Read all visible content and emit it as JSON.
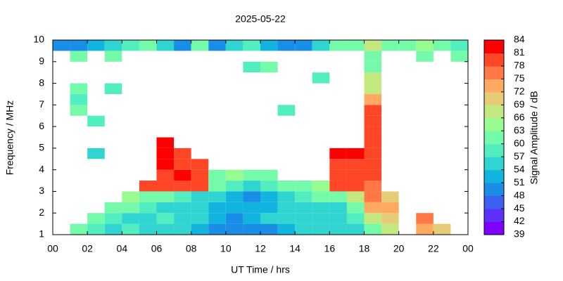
{
  "chart_data": {
    "type": "heatmap",
    "title": "2025-05-22",
    "x_label": "UT Time / hrs",
    "y_label": "Frequency / MHz",
    "colorbar_label": "Signal Amplitude / dB",
    "xlim": [
      0,
      24
    ],
    "xticks": [
      {
        "value": 0,
        "label": "00"
      },
      {
        "value": 2,
        "label": "02"
      },
      {
        "value": 4,
        "label": "04"
      },
      {
        "value": 6,
        "label": "06"
      },
      {
        "value": 8,
        "label": "08"
      },
      10,
      12,
      14,
      16,
      18,
      20,
      22,
      {
        "value": 24,
        "label": "00"
      }
    ],
    "ylim": [
      1,
      10
    ],
    "yticks": [
      1,
      2,
      3,
      4,
      5,
      6,
      7,
      8,
      9,
      10
    ],
    "clim": [
      39,
      84
    ],
    "cticks": [
      39,
      42,
      45,
      48,
      51,
      54,
      57,
      60,
      63,
      66,
      69,
      72,
      75,
      78,
      81,
      84
    ],
    "colors": [
      "#8000ff",
      "#5e30fa",
      "#3c60f2",
      "#1a8ee6",
      "#10b4de",
      "#30d4d0",
      "#52eec0",
      "#74faa8",
      "#98fc90",
      "#c4e880",
      "#e6cc78",
      "#ffaa60",
      "#ff7846",
      "#ff4626",
      "#ff0000"
    ],
    "x": [
      0,
      1,
      2,
      3,
      4,
      5,
      6,
      7,
      8,
      9,
      10,
      11,
      12,
      13,
      14,
      15,
      16,
      17,
      18,
      19,
      20,
      21,
      22,
      23
    ],
    "y": [
      1,
      1.5,
      2,
      2.5,
      3,
      3.5,
      4,
      4.5,
      5,
      5.5,
      6,
      6.5,
      7,
      7.5,
      8,
      8.5,
      9,
      9.5
    ],
    "values": [
      [
        null,
        60,
        58,
        55,
        57,
        55,
        54,
        55,
        52,
        50,
        50,
        48,
        50,
        52,
        54,
        55,
        55,
        56,
        60,
        66,
        null,
        72,
        70,
        null
      ],
      [
        null,
        null,
        60,
        58,
        56,
        55,
        57,
        55,
        54,
        52,
        50,
        52,
        55,
        54,
        55,
        56,
        55,
        58,
        66,
        70,
        null,
        75,
        null,
        null
      ],
      [
        null,
        null,
        null,
        62,
        60,
        58,
        56,
        55,
        54,
        53,
        52,
        53,
        52,
        54,
        55,
        56,
        56,
        60,
        72,
        72,
        null,
        null,
        null,
        null
      ],
      [
        null,
        null,
        null,
        null,
        63,
        62,
        60,
        58,
        56,
        54,
        52,
        50,
        52,
        55,
        57,
        60,
        62,
        66,
        75,
        70,
        null,
        null,
        null,
        null
      ],
      [
        null,
        null,
        null,
        null,
        null,
        78,
        80,
        80,
        78,
        60,
        57,
        55,
        57,
        60,
        62,
        65,
        78,
        80,
        75,
        null,
        null,
        null,
        null,
        null
      ],
      [
        null,
        null,
        null,
        null,
        null,
        null,
        80,
        82,
        80,
        62,
        63,
        62,
        62,
        null,
        null,
        null,
        80,
        80,
        78,
        null,
        null,
        null,
        null,
        null
      ],
      [
        null,
        null,
        null,
        null,
        null,
        null,
        82,
        80,
        80,
        null,
        null,
        null,
        null,
        null,
        null,
        null,
        80,
        80,
        80,
        null,
        null,
        null,
        null,
        null
      ],
      [
        null,
        null,
        54,
        null,
        null,
        null,
        82,
        80,
        null,
        null,
        null,
        null,
        null,
        null,
        null,
        null,
        82,
        82,
        80,
        null,
        null,
        null,
        null,
        null
      ],
      [
        null,
        null,
        null,
        null,
        null,
        null,
        84,
        null,
        null,
        null,
        null,
        null,
        null,
        null,
        null,
        null,
        null,
        null,
        80,
        null,
        null,
        null,
        null,
        null
      ],
      [
        null,
        null,
        null,
        null,
        null,
        null,
        null,
        null,
        null,
        null,
        null,
        null,
        null,
        null,
        null,
        null,
        null,
        null,
        80,
        null,
        null,
        null,
        null,
        null
      ],
      [
        null,
        null,
        58,
        null,
        null,
        null,
        null,
        null,
        null,
        null,
        null,
        null,
        null,
        null,
        null,
        null,
        null,
        null,
        80,
        null,
        null,
        null,
        null,
        null
      ],
      [
        null,
        60,
        null,
        null,
        null,
        null,
        null,
        null,
        null,
        null,
        null,
        null,
        null,
        57,
        null,
        null,
        null,
        null,
        78,
        null,
        null,
        null,
        null,
        null
      ],
      [
        null,
        58,
        null,
        null,
        null,
        null,
        null,
        null,
        null,
        null,
        null,
        null,
        null,
        null,
        null,
        null,
        null,
        null,
        72,
        null,
        null,
        null,
        null,
        null
      ],
      [
        null,
        60,
        null,
        57,
        null,
        null,
        null,
        null,
        null,
        null,
        null,
        null,
        null,
        null,
        null,
        null,
        null,
        null,
        66,
        null,
        null,
        null,
        null,
        null
      ],
      [
        null,
        null,
        null,
        null,
        null,
        null,
        null,
        null,
        null,
        null,
        null,
        null,
        null,
        null,
        null,
        57,
        null,
        null,
        66,
        null,
        null,
        null,
        null,
        null
      ],
      [
        null,
        null,
        null,
        null,
        null,
        null,
        null,
        null,
        null,
        null,
        null,
        57,
        60,
        null,
        null,
        null,
        null,
        null,
        60,
        null,
        null,
        null,
        null,
        null
      ],
      [
        null,
        62,
        null,
        60,
        null,
        null,
        null,
        null,
        null,
        null,
        null,
        null,
        null,
        null,
        null,
        null,
        null,
        null,
        60,
        null,
        null,
        62,
        null,
        60
      ],
      [
        50,
        48,
        52,
        55,
        58,
        62,
        55,
        50,
        60,
        50,
        55,
        58,
        52,
        50,
        48,
        55,
        60,
        62,
        66,
        60,
        62,
        64,
        60,
        58
      ]
    ]
  }
}
